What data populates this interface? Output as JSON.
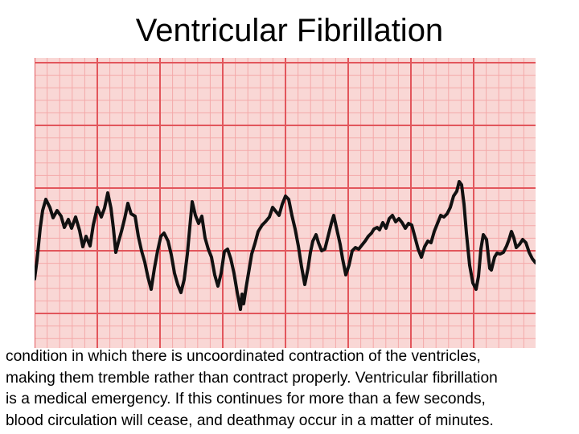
{
  "slide": {
    "title": "Ventricular Fibrillation",
    "caption": "condition in which there is uncoordinated contraction of the ventricles,\nmaking them tremble rather than contract properly. Ventricular fibrillation\nis a medical emergency. If this continues for more than a few seconds,\nblood circulation will cease, and deathmay occur in a matter of minutes."
  },
  "ecg": {
    "rhythm": "ventricular fibrillation",
    "grid_minor_color": "#f4a9a9",
    "grid_major_color": "#e2565c",
    "paper_color": "#f9d7d5",
    "trace_color": "#111111"
  }
}
